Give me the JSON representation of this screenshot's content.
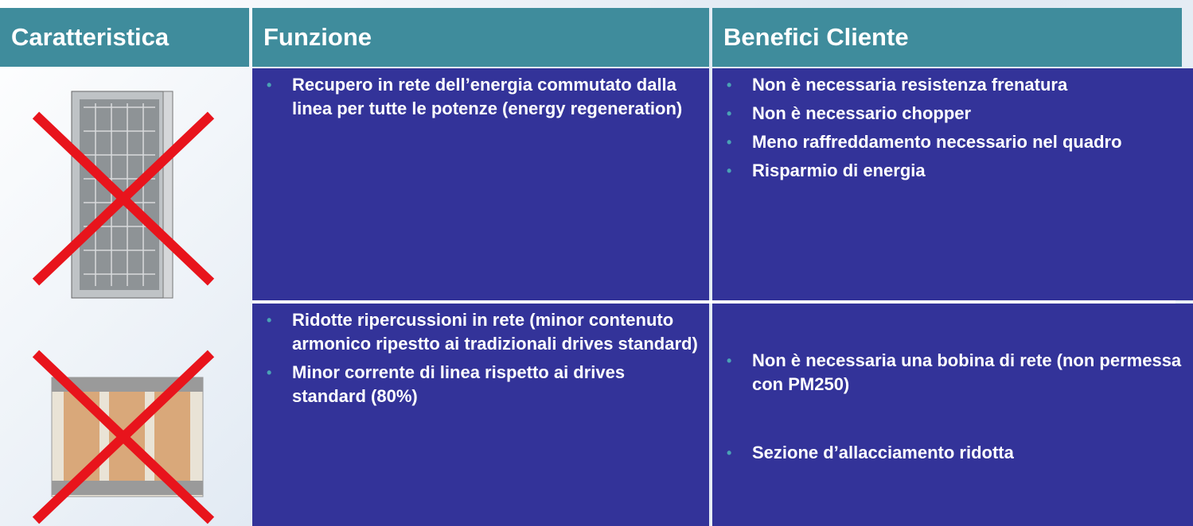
{
  "header": {
    "columns": [
      "Caratteristica",
      "Funzione",
      "Benefici Cliente"
    ]
  },
  "rows": [
    {
      "funzione": [
        "Recupero in rete dell’energia commutato dalla linea per tutte le potenze (energy regeneration)"
      ],
      "benefici": [
        "Non è necessaria resistenza frenatura",
        "Non è necessario chopper",
        "Meno raffreddamento necessario nel quadro",
        "Risparmio di energia"
      ]
    },
    {
      "funzione": [
        "Ridotte ripercussioni in rete (minor contenuto armonico ripestto ai tradizionali drives standard)",
        "Minor corrente di linea rispetto ai drives standard (80%)"
      ],
      "benefici": [
        "Non è necessaria una bobina di rete (non permessa con PM250)",
        "Sezione d’allacciamento ridotta"
      ]
    }
  ]
}
